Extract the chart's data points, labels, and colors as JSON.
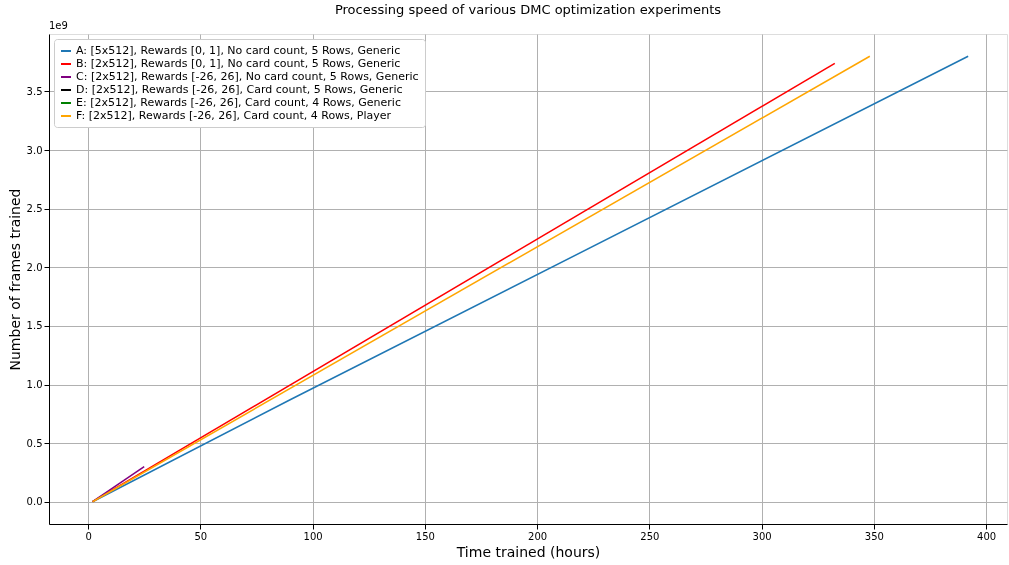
{
  "chart_data": {
    "type": "line",
    "title": "Processing speed of various DMC optimization experiments",
    "xlabel": "Time trained (hours)",
    "ylabel": "Number of frames trained",
    "annotations": [
      "1e9"
    ],
    "series": [
      {
        "name": "A: [5x512], Rewards [0, 1], No card count, 5 Rows, Generic",
        "color": "#1f77b4",
        "x": [
          2,
          90,
          392
        ],
        "values": [
          0,
          0.87,
          3.8
        ]
      },
      {
        "name": "B: [2x512], Rewards [0, 1], No card count, 5 Rows, Generic",
        "color": "#ff0000",
        "x": [
          2,
          332.6
        ],
        "values": [
          0,
          3.74
        ]
      },
      {
        "name": "C: [2x512], Rewards [-26, 26], No card count, 5 Rows, Generic",
        "color": "#800080",
        "x": [
          2,
          25
        ],
        "values": [
          0,
          0.3
        ]
      },
      {
        "name": "D: [2x512], Rewards [-26, 26], Card count, 5 Rows, Generic",
        "color": "#000000"
      },
      {
        "name": "E: [2x512], Rewards [-26, 26], Card count, 4 Rows, Generic",
        "color": "#008000"
      },
      {
        "name": "F: [2x512], Rewards [-26, 26], Card count, 4 Rows, Player",
        "color": "#ffa500",
        "x": [
          2,
          348.2
        ],
        "values": [
          0,
          3.8
        ]
      }
    ],
    "xlim": [
      -17.4,
      409.3
    ],
    "ylim": [
      -0.19,
      3.99
    ],
    "xticks": [
      0,
      50,
      100,
      150,
      200,
      250,
      300,
      350,
      400
    ],
    "yticks": [
      {
        "value": 0,
        "label": "0.0"
      },
      0.5,
      {
        "value": 1,
        "label": "1.0"
      },
      1.5,
      {
        "value": 2,
        "label": "2.0"
      },
      2.5,
      {
        "value": 3,
        "label": "3.0"
      },
      3.5
    ],
    "grid": true,
    "legend": "top left",
    "marker": "none",
    "line_style": "solid"
  }
}
